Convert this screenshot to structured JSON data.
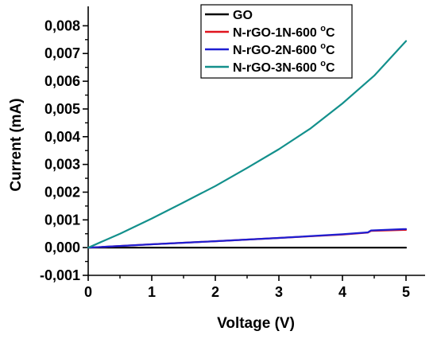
{
  "chart_data": {
    "type": "line",
    "title": "",
    "xlabel": "Voltage (V)",
    "ylabel": "Current (mA)",
    "xlim": [
      0,
      5.3
    ],
    "ylim": [
      -0.001,
      0.0087
    ],
    "x_ticks": [
      0,
      1,
      2,
      3,
      4,
      5
    ],
    "x_tick_labels": [
      "0",
      "1",
      "2",
      "3",
      "4",
      "5"
    ],
    "y_ticks": [
      -0.001,
      0,
      0.001,
      0.002,
      0.003,
      0.004,
      0.005,
      0.006,
      0.007,
      0.008
    ],
    "y_tick_labels": [
      "-0,001",
      "0,000",
      "0,001",
      "0,002",
      "0,003",
      "0,004",
      "0,005",
      "0,006",
      "0,007",
      "0,008"
    ],
    "grid": false,
    "legend_position": "top-right",
    "legend_sup": "o",
    "series": [
      {
        "name": "GO",
        "label_main": "GO",
        "label_tail": "",
        "color": "#000000",
        "x": [
          0,
          1,
          2,
          3,
          4,
          5
        ],
        "y": [
          0,
          0,
          0,
          0,
          0,
          0
        ]
      },
      {
        "name": "N-rGO-1N-600 °C",
        "label_main": "N-rGO-1N-600 ",
        "label_tail": "C",
        "color": "#e0141e",
        "x": [
          0,
          1,
          2,
          3,
          4,
          4.4,
          4.45,
          5
        ],
        "y": [
          0,
          0.00012,
          0.00023,
          0.00035,
          0.00047,
          0.00054,
          0.0006,
          0.00064
        ]
      },
      {
        "name": "N-rGO-2N-600 °C",
        "label_main": "N-rGO-2N-600 ",
        "label_tail": "C",
        "color": "#1e1ed2",
        "x": [
          0,
          1,
          2,
          3,
          4,
          4.4,
          4.45,
          5
        ],
        "y": [
          0,
          0.00012,
          0.00023,
          0.00035,
          0.00048,
          0.00055,
          0.00062,
          0.00067
        ]
      },
      {
        "name": "N-rGO-3N-600 °C",
        "label_main": "N-rGO-3N-600 ",
        "label_tail": "C",
        "color": "#13908c",
        "x": [
          0,
          0.5,
          1,
          1.5,
          2,
          2.5,
          3,
          3.5,
          4,
          4.5,
          5
        ],
        "y": [
          0,
          0.0005,
          0.00105,
          0.00163,
          0.00222,
          0.00287,
          0.00355,
          0.0043,
          0.0052,
          0.0062,
          0.00745
        ]
      }
    ]
  }
}
